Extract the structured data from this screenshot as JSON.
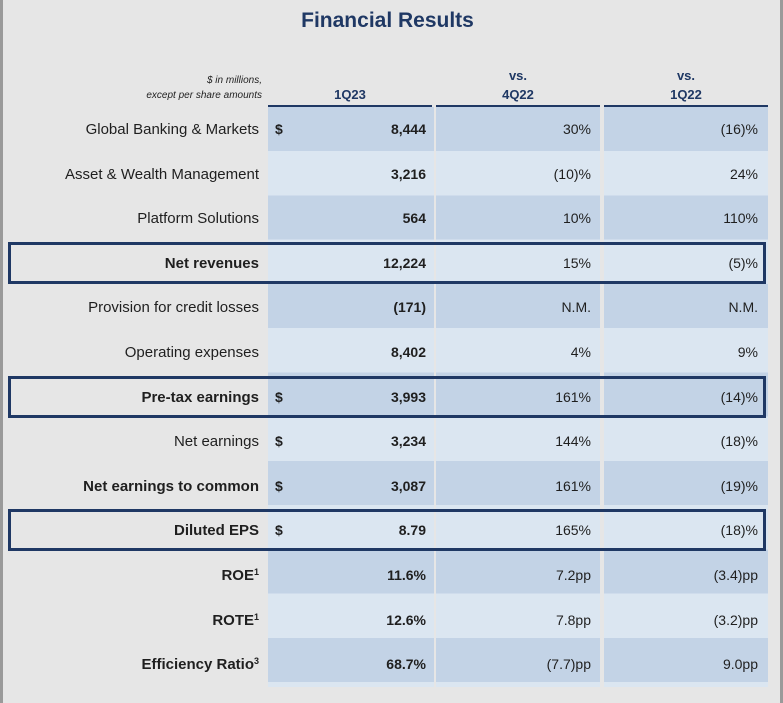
{
  "title": "Financial Results",
  "units_note": {
    "line1": "$ in millions,",
    "line2": "except per share amounts"
  },
  "headers": {
    "col1": "1Q23",
    "col2_line1": "vs.",
    "col2_line2": "4Q22",
    "col3_line1": "vs.",
    "col3_line2": "1Q22"
  },
  "rows": [
    {
      "label": "Global Banking & Markets",
      "sup": "",
      "dollar": "$",
      "v1": "8,444",
      "v2": "30%",
      "v3": "(16)%"
    },
    {
      "label": "Asset & Wealth Management",
      "sup": "",
      "dollar": "",
      "v1": "3,216",
      "v2": "(10)%",
      "v3": "24%"
    },
    {
      "label": "Platform Solutions",
      "sup": "",
      "dollar": "",
      "v1": "564",
      "v2": "10%",
      "v3": "110%"
    },
    {
      "label": "Net revenues",
      "sup": "",
      "dollar": "",
      "v1": "12,224",
      "v2": "15%",
      "v3": "(5)%"
    },
    {
      "label": "Provision for credit losses",
      "sup": "",
      "dollar": "",
      "v1": "(171)",
      "v2": "N.M.",
      "v3": "N.M."
    },
    {
      "label": "Operating expenses",
      "sup": "",
      "dollar": "",
      "v1": "8,402",
      "v2": "4%",
      "v3": "9%"
    },
    {
      "label": "Pre-tax earnings",
      "sup": "",
      "dollar": "$",
      "v1": "3,993",
      "v2": "161%",
      "v3": "(14)%"
    },
    {
      "label": "Net earnings",
      "sup": "",
      "dollar": "$",
      "v1": "3,234",
      "v2": "144%",
      "v3": "(18)%"
    },
    {
      "label": "Net earnings to common",
      "sup": "",
      "dollar": "$",
      "v1": "3,087",
      "v2": "161%",
      "v3": "(19)%"
    },
    {
      "label": "Diluted EPS",
      "sup": "",
      "dollar": "$",
      "v1": "8.79",
      "v2": "165%",
      "v3": "(18)%"
    },
    {
      "label": "ROE",
      "sup": "1",
      "dollar": "",
      "v1": "11.6%",
      "v2": "7.2pp",
      "v3": "(3.4)pp"
    },
    {
      "label": "ROTE",
      "sup": "1",
      "dollar": "",
      "v1": "12.6%",
      "v2": "7.8pp",
      "v3": "(3.2)pp"
    },
    {
      "label": "Efficiency Ratio",
      "sup": "3",
      "dollar": "",
      "v1": "68.7%",
      "v2": "(7.7)pp",
      "v3": "9.0pp"
    }
  ]
}
